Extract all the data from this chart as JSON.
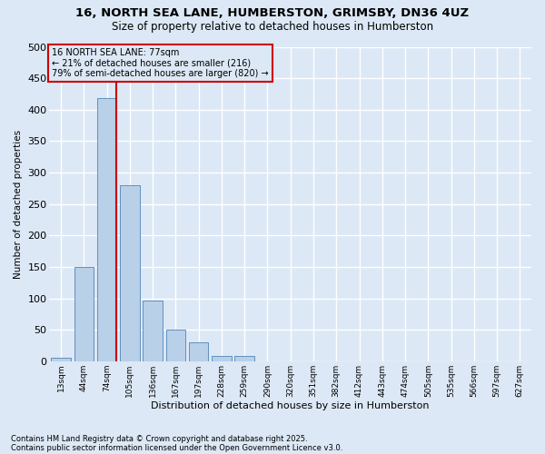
{
  "title_line1": "16, NORTH SEA LANE, HUMBERSTON, GRIMSBY, DN36 4UZ",
  "title_line2": "Size of property relative to detached houses in Humberston",
  "xlabel": "Distribution of detached houses by size in Humberston",
  "ylabel": "Number of detached properties",
  "categories": [
    "13sqm",
    "44sqm",
    "74sqm",
    "105sqm",
    "136sqm",
    "167sqm",
    "197sqm",
    "228sqm",
    "259sqm",
    "290sqm",
    "320sqm",
    "351sqm",
    "382sqm",
    "412sqm",
    "443sqm",
    "474sqm",
    "505sqm",
    "535sqm",
    "566sqm",
    "597sqm",
    "627sqm"
  ],
  "values": [
    5,
    150,
    418,
    280,
    97,
    50,
    30,
    9,
    9,
    0,
    0,
    0,
    0,
    0,
    0,
    0,
    0,
    0,
    0,
    0,
    0
  ],
  "bar_color": "#b8d0e8",
  "bar_edge_color": "#6090c0",
  "vline_color": "#cc0000",
  "vline_x_index": 2,
  "annotation_text_line1": "16 NORTH SEA LANE: 77sqm",
  "annotation_text_line2": "← 21% of detached houses are smaller (216)",
  "annotation_text_line3": "79% of semi-detached houses are larger (820) →",
  "annotation_box_color": "#cc0000",
  "ylim": [
    0,
    500
  ],
  "yticks": [
    0,
    50,
    100,
    150,
    200,
    250,
    300,
    350,
    400,
    450,
    500
  ],
  "background_color": "#dce8f5",
  "grid_color": "#ffffff",
  "footer_line1": "Contains HM Land Registry data © Crown copyright and database right 2025.",
  "footer_line2": "Contains public sector information licensed under the Open Government Licence v3.0."
}
